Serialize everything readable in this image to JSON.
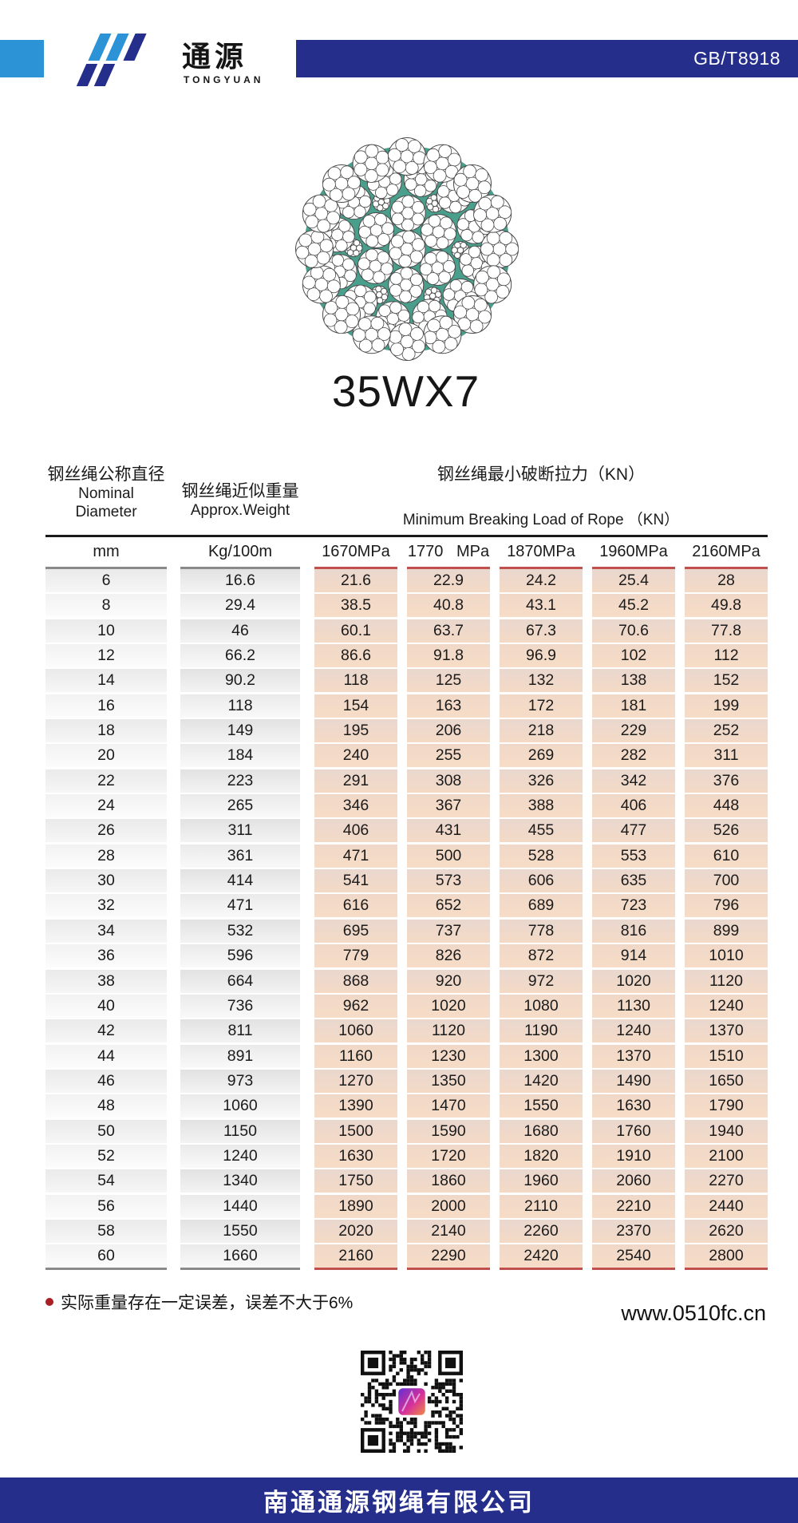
{
  "header": {
    "logo_cn": "通源",
    "logo_en": "TONGYUAN",
    "standard": "GB/T8918"
  },
  "product": {
    "model": "35WX7",
    "diagram": "wire-rope-cross-section"
  },
  "table": {
    "col1_header": {
      "cn": "钢丝绳公称直径",
      "en_line1": "Nominal",
      "en_line2": "Diameter"
    },
    "col2_header": {
      "cn": "钢丝绳近似重量",
      "en": "Approx.Weight"
    },
    "group_header": {
      "cn": "钢丝绳最小破断拉力（KN）",
      "en": "Minimum Breaking Load of Rope （KN）"
    },
    "units": [
      "mm",
      "Kg/100m",
      "1670MPa",
      "1770   MPa",
      "1870MPa",
      "1960MPa",
      "2160MPa"
    ],
    "rows": [
      [
        "6",
        "16.6",
        "21.6",
        "22.9",
        "24.2",
        "25.4",
        "28"
      ],
      [
        "8",
        "29.4",
        "38.5",
        "40.8",
        "43.1",
        "45.2",
        "49.8"
      ],
      [
        "10",
        "46",
        "60.1",
        "63.7",
        "67.3",
        "70.6",
        "77.8"
      ],
      [
        "12",
        "66.2",
        "86.6",
        "91.8",
        "96.9",
        "102",
        "112"
      ],
      [
        "14",
        "90.2",
        "118",
        "125",
        "132",
        "138",
        "152"
      ],
      [
        "16",
        "118",
        "154",
        "163",
        "172",
        "181",
        "199"
      ],
      [
        "18",
        "149",
        "195",
        "206",
        "218",
        "229",
        "252"
      ],
      [
        "20",
        "184",
        "240",
        "255",
        "269",
        "282",
        "311"
      ],
      [
        "22",
        "223",
        "291",
        "308",
        "326",
        "342",
        "376"
      ],
      [
        "24",
        "265",
        "346",
        "367",
        "388",
        "406",
        "448"
      ],
      [
        "26",
        "311",
        "406",
        "431",
        "455",
        "477",
        "526"
      ],
      [
        "28",
        "361",
        "471",
        "500",
        "528",
        "553",
        "610"
      ],
      [
        "30",
        "414",
        "541",
        "573",
        "606",
        "635",
        "700"
      ],
      [
        "32",
        "471",
        "616",
        "652",
        "689",
        "723",
        "796"
      ],
      [
        "34",
        "532",
        "695",
        "737",
        "778",
        "816",
        "899"
      ],
      [
        "36",
        "596",
        "779",
        "826",
        "872",
        "914",
        "1010"
      ],
      [
        "38",
        "664",
        "868",
        "920",
        "972",
        "1020",
        "1120"
      ],
      [
        "40",
        "736",
        "962",
        "1020",
        "1080",
        "1130",
        "1240"
      ],
      [
        "42",
        "811",
        "1060",
        "1120",
        "1190",
        "1240",
        "1370"
      ],
      [
        "44",
        "891",
        "1160",
        "1230",
        "1300",
        "1370",
        "1510"
      ],
      [
        "46",
        "973",
        "1270",
        "1350",
        "1420",
        "1490",
        "1650"
      ],
      [
        "48",
        "1060",
        "1390",
        "1470",
        "1550",
        "1630",
        "1790"
      ],
      [
        "50",
        "1150",
        "1500",
        "1590",
        "1680",
        "1760",
        "1940"
      ],
      [
        "52",
        "1240",
        "1630",
        "1720",
        "1820",
        "1910",
        "2100"
      ],
      [
        "54",
        "1340",
        "1750",
        "1860",
        "1960",
        "2060",
        "2270"
      ],
      [
        "56",
        "1440",
        "1890",
        "2000",
        "2110",
        "2210",
        "2440"
      ],
      [
        "58",
        "1550",
        "2020",
        "2140",
        "2260",
        "2370",
        "2620"
      ],
      [
        "60",
        "1660",
        "2160",
        "2290",
        "2420",
        "2540",
        "2800"
      ]
    ]
  },
  "footnote": "实际重量存在一定误差，误差不大于6%",
  "website": "www.0510fc.cn",
  "footer": {
    "company": "南通通源钢绳有限公司"
  },
  "colors": {
    "brand_blue": "#262e8c",
    "light_blue": "#2b93d6",
    "teal": "#4a9e8c",
    "salmon": "#f2d9c6",
    "red_accent": "#c0504d",
    "bullet_red": "#a81e24"
  }
}
